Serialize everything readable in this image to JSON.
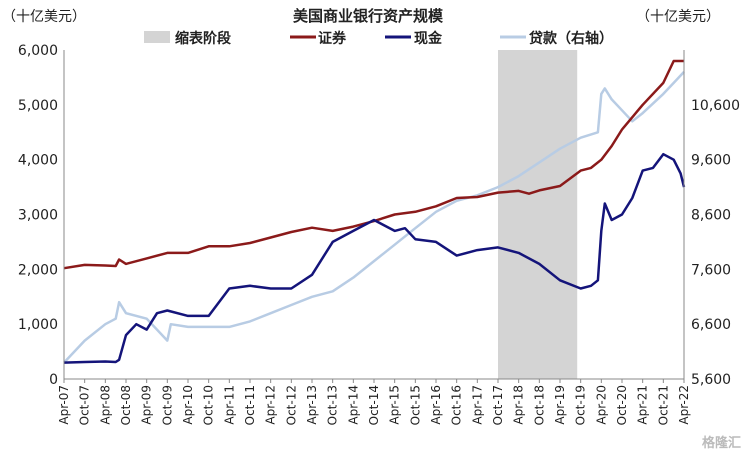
{
  "chart_data": {
    "type": "line",
    "title": "美国商业银行资产规模",
    "y_left_unit": "（十亿美元）",
    "y_right_unit": "（十亿美元）",
    "y_left": {
      "min": 0,
      "max": 6000,
      "ticks": [
        "0",
        "1,000",
        "2,000",
        "3,000",
        "4,000",
        "5,000",
        "6,000"
      ]
    },
    "y_right": {
      "min": 5600,
      "max": 11600,
      "ticks": [
        "5,600",
        "6,600",
        "7,600",
        "8,600",
        "9,600",
        "10,600"
      ]
    },
    "x_ticks": [
      "Apr-07",
      "Oct-07",
      "Apr-08",
      "Oct-08",
      "Apr-09",
      "Oct-09",
      "Apr-10",
      "Oct-10",
      "Apr-11",
      "Oct-11",
      "Apr-12",
      "Oct-12",
      "Apr-13",
      "Oct-13",
      "Apr-14",
      "Oct-14",
      "Apr-15",
      "Oct-15",
      "Apr-16",
      "Oct-16",
      "Apr-17",
      "Oct-17",
      "Apr-18",
      "Oct-18",
      "Apr-19",
      "Oct-19",
      "Apr-20",
      "Oct-20",
      "Apr-21",
      "Oct-21",
      "Apr-22"
    ],
    "shaded_region": {
      "label": "缩表阶段",
      "from": "Oct-17",
      "to": "Sep-19",
      "color": "#d4d4d4"
    },
    "series": [
      {
        "name": "证券",
        "axis": "left",
        "color": "#8b1a1a",
        "points": [
          [
            "Apr-07",
            2020
          ],
          [
            "Oct-07",
            2080
          ],
          [
            "Apr-08",
            2070
          ],
          [
            "Jul-08",
            2060
          ],
          [
            "Aug-08",
            2180
          ],
          [
            "Oct-08",
            2100
          ],
          [
            "Apr-09",
            2200
          ],
          [
            "Oct-09",
            2300
          ],
          [
            "Apr-10",
            2300
          ],
          [
            "Oct-10",
            2420
          ],
          [
            "Apr-11",
            2420
          ],
          [
            "Oct-11",
            2480
          ],
          [
            "Apr-12",
            2580
          ],
          [
            "Oct-12",
            2680
          ],
          [
            "Apr-13",
            2760
          ],
          [
            "Oct-13",
            2700
          ],
          [
            "Apr-14",
            2780
          ],
          [
            "Oct-14",
            2880
          ],
          [
            "Apr-15",
            3000
          ],
          [
            "Oct-15",
            3050
          ],
          [
            "Apr-16",
            3150
          ],
          [
            "Oct-16",
            3300
          ],
          [
            "Apr-17",
            3320
          ],
          [
            "Oct-17",
            3400
          ],
          [
            "Apr-18",
            3430
          ],
          [
            "Jul-18",
            3380
          ],
          [
            "Oct-18",
            3440
          ],
          [
            "Apr-19",
            3520
          ],
          [
            "Oct-19",
            3800
          ],
          [
            "Jan-20",
            3850
          ],
          [
            "Apr-20",
            4000
          ],
          [
            "Jul-20",
            4250
          ],
          [
            "Oct-20",
            4550
          ],
          [
            "Apr-21",
            5000
          ],
          [
            "Oct-21",
            5400
          ],
          [
            "Jan-22",
            5800
          ],
          [
            "Apr-22",
            5800
          ]
        ]
      },
      {
        "name": "现金",
        "axis": "left",
        "color": "#14147a",
        "points": [
          [
            "Apr-07",
            300
          ],
          [
            "Oct-07",
            310
          ],
          [
            "Apr-08",
            320
          ],
          [
            "Jul-08",
            310
          ],
          [
            "Aug-08",
            350
          ],
          [
            "Oct-08",
            800
          ],
          [
            "Jan-09",
            1000
          ],
          [
            "Apr-09",
            900
          ],
          [
            "Jul-09",
            1200
          ],
          [
            "Oct-09",
            1250
          ],
          [
            "Apr-10",
            1150
          ],
          [
            "Oct-10",
            1150
          ],
          [
            "Apr-11",
            1650
          ],
          [
            "Oct-11",
            1700
          ],
          [
            "Apr-12",
            1650
          ],
          [
            "Oct-12",
            1650
          ],
          [
            "Apr-13",
            1900
          ],
          [
            "Oct-13",
            2500
          ],
          [
            "Apr-14",
            2700
          ],
          [
            "Oct-14",
            2900
          ],
          [
            "Apr-15",
            2700
          ],
          [
            "Jul-15",
            2750
          ],
          [
            "Oct-15",
            2550
          ],
          [
            "Apr-16",
            2500
          ],
          [
            "Oct-16",
            2250
          ],
          [
            "Apr-17",
            2350
          ],
          [
            "Oct-17",
            2400
          ],
          [
            "Apr-18",
            2300
          ],
          [
            "Oct-18",
            2100
          ],
          [
            "Apr-19",
            1800
          ],
          [
            "Oct-19",
            1650
          ],
          [
            "Jan-20",
            1700
          ],
          [
            "Mar-20",
            1800
          ],
          [
            "Apr-20",
            2700
          ],
          [
            "May-20",
            3200
          ],
          [
            "Jul-20",
            2900
          ],
          [
            "Oct-20",
            3000
          ],
          [
            "Jan-21",
            3300
          ],
          [
            "Apr-21",
            3800
          ],
          [
            "Jul-21",
            3850
          ],
          [
            "Oct-21",
            4100
          ],
          [
            "Jan-22",
            4000
          ],
          [
            "Mar-22",
            3750
          ],
          [
            "Apr-22",
            3500
          ]
        ]
      },
      {
        "name": "贷款（右轴）",
        "axis": "right",
        "color": "#b8cce4",
        "points": [
          [
            "Apr-07",
            5900
          ],
          [
            "Oct-07",
            6300
          ],
          [
            "Apr-08",
            6600
          ],
          [
            "Jul-08",
            6700
          ],
          [
            "Aug-08",
            7000
          ],
          [
            "Oct-08",
            6800
          ],
          [
            "Apr-09",
            6700
          ],
          [
            "Oct-09",
            6300
          ],
          [
            "Nov-09",
            6600
          ],
          [
            "Apr-10",
            6550
          ],
          [
            "Oct-10",
            6550
          ],
          [
            "Apr-11",
            6550
          ],
          [
            "Oct-11",
            6650
          ],
          [
            "Apr-12",
            6800
          ],
          [
            "Oct-12",
            6950
          ],
          [
            "Apr-13",
            7100
          ],
          [
            "Oct-13",
            7200
          ],
          [
            "Apr-14",
            7450
          ],
          [
            "Oct-14",
            7750
          ],
          [
            "Apr-15",
            8050
          ],
          [
            "Oct-15",
            8350
          ],
          [
            "Apr-16",
            8650
          ],
          [
            "Oct-16",
            8850
          ],
          [
            "Apr-17",
            8950
          ],
          [
            "Oct-17",
            9100
          ],
          [
            "Apr-18",
            9300
          ],
          [
            "Oct-18",
            9550
          ],
          [
            "Apr-19",
            9800
          ],
          [
            "Oct-19",
            10000
          ],
          [
            "Mar-20",
            10100
          ],
          [
            "Apr-20",
            10800
          ],
          [
            "May-20",
            10900
          ],
          [
            "Jul-20",
            10700
          ],
          [
            "Oct-20",
            10500
          ],
          [
            "Jan-21",
            10300
          ],
          [
            "Apr-21",
            10450
          ],
          [
            "Oct-21",
            10800
          ],
          [
            "Jan-22",
            11000
          ],
          [
            "Apr-22",
            11200
          ]
        ]
      }
    ],
    "legend": {
      "placement": "top",
      "items": [
        "缩表阶段",
        "证券",
        "现金",
        "贷款（右轴）"
      ]
    },
    "grid": false
  },
  "watermark": "格隆汇"
}
